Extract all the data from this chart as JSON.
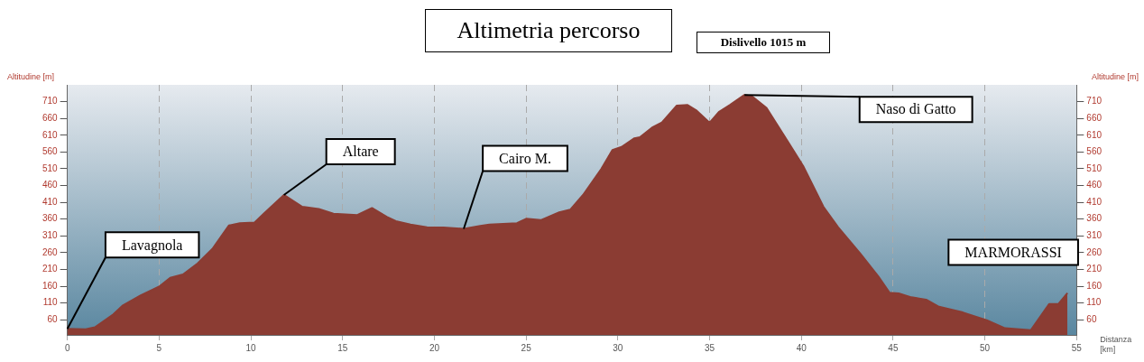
{
  "chart_data": {
    "type": "area",
    "title": "Altimetria percorso",
    "subtitle": "Dislivello 1015  m",
    "xlabel": "Distanza [km]",
    "ylabel": "Altitudine [m]",
    "y2label": "Altitudine [m]",
    "series": [
      {
        "color": "#8b3c33",
        "x": [
          0,
          1.0,
          1.5,
          2.5,
          3.0,
          4.0,
          5.0,
          5.6,
          6.3,
          7.1,
          7.9,
          8.8,
          9.4,
          10.2,
          10.7,
          11.8,
          12.8,
          13.7,
          14.5,
          15.8,
          16.6,
          17.4,
          17.9,
          18.7,
          19.6,
          20.5,
          21.6,
          22.5,
          23.0,
          24.5,
          25.0,
          25.8,
          26.8,
          27.4,
          28.1,
          29.1,
          29.7,
          30.2,
          30.9,
          31.2,
          31.9,
          32.4,
          33.2,
          33.8,
          34.3,
          35.0,
          35.5,
          36.1,
          36.9,
          37.3,
          38.1,
          39.3,
          40.1,
          41.2,
          42.0,
          43.2,
          44.2,
          44.8,
          45.3,
          46.0,
          46.8,
          47.5,
          48.8,
          50.1,
          51.1,
          52.5,
          53.5,
          54.0,
          54.5
        ],
        "values": [
          33,
          32,
          38,
          76,
          102,
          133,
          159,
          185,
          195,
          228,
          271,
          341,
          348,
          350,
          376,
          432,
          397,
          390,
          376,
          372,
          393,
          367,
          354,
          344,
          336,
          335,
          331,
          340,
          344,
          348,
          361,
          357,
          380,
          388,
          432,
          510,
          566,
          575,
          601,
          604,
          634,
          648,
          698,
          700,
          683,
          647,
          679,
          700,
          730,
          726,
          691,
          588,
          518,
          397,
          336,
          258,
          189,
          141,
          139,
          127,
          120,
          99,
          82,
          59,
          35,
          29,
          107,
          107,
          140
        ]
      }
    ],
    "xlim": [
      0,
      55
    ],
    "xticks": [
      0,
      5,
      10,
      15,
      20,
      25,
      30,
      35,
      40,
      45,
      50,
      55
    ],
    "ylim": [
      15,
      760
    ],
    "yticks": [
      60,
      110,
      160,
      210,
      260,
      310,
      360,
      410,
      460,
      510,
      560,
      610,
      660,
      710
    ],
    "y2lim": [
      15,
      760
    ],
    "y2ticks": [
      60,
      110,
      160,
      210,
      260,
      310,
      360,
      410,
      460,
      510,
      560,
      610,
      660,
      710
    ],
    "grid": "x",
    "marker": "none",
    "legend": false,
    "annotations": [
      {
        "text": "Lavagnola",
        "x": 0,
        "y": 33
      },
      {
        "text": "Altare",
        "x": 11.8,
        "y": 432
      },
      {
        "text": "Cairo M.",
        "x": 21.6,
        "y": 331
      },
      {
        "text": "Naso di Gatto",
        "x": 36.9,
        "y": 730
      },
      {
        "text": "MARMORASSI",
        "x": 54.5,
        "y": 140
      }
    ]
  }
}
